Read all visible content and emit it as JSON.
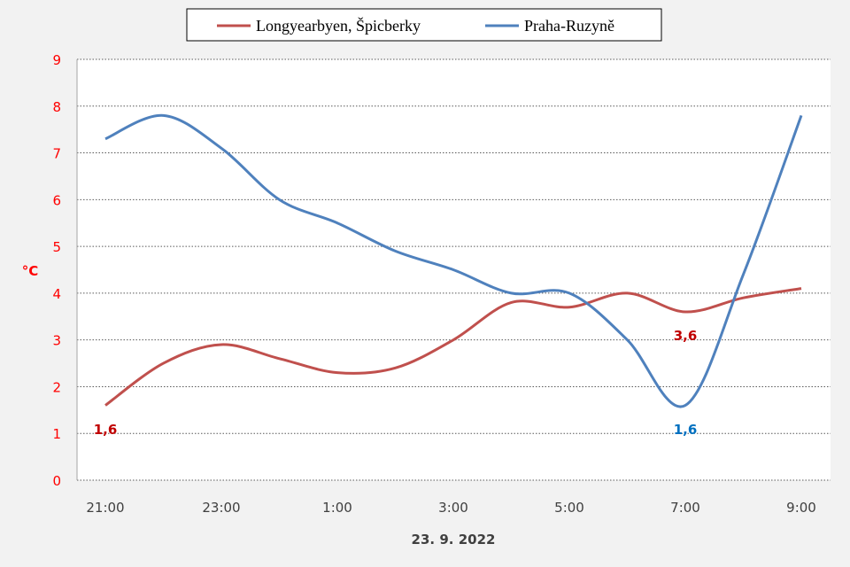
{
  "chart_data": {
    "type": "line",
    "smooth": true,
    "xlabel": "23. 9. 2022",
    "ylabel": "°C",
    "ylim": [
      0,
      9
    ],
    "yticks": [
      "0",
      "1",
      "2",
      "3",
      "4",
      "5",
      "6",
      "7",
      "8",
      "9"
    ],
    "x": [
      "21:00",
      "22:00",
      "23:00",
      "0:00",
      "1:00",
      "2:00",
      "3:00",
      "4:00",
      "5:00",
      "6:00",
      "7:00",
      "8:00",
      "9:00"
    ],
    "xtick_labels": [
      "21:00",
      "23:00",
      "1:00",
      "3:00",
      "5:00",
      "7:00",
      "9:00"
    ],
    "grid": "horizontal dotted",
    "legend_position": "top",
    "series": [
      {
        "name": "Longyearbyen, Špicberky",
        "color": "#c0504d",
        "values": [
          1.6,
          2.5,
          2.9,
          2.6,
          2.3,
          2.4,
          3.0,
          3.8,
          3.7,
          4.0,
          3.6,
          3.9,
          4.1
        ]
      },
      {
        "name": "Praha-Ruzyně",
        "color": "#4f81bd",
        "values": [
          7.3,
          7.8,
          7.1,
          6.0,
          5.5,
          4.9,
          4.5,
          4.0,
          4.0,
          3.0,
          1.6,
          4.4,
          7.8
        ]
      }
    ],
    "annotations": [
      {
        "series": 0,
        "x": "21:00",
        "text": "1,6",
        "color": "#c00000"
      },
      {
        "series": 0,
        "x": "7:00",
        "text": "3,6",
        "color": "#c00000"
      },
      {
        "series": 1,
        "x": "7:00",
        "text": "1,6",
        "color": "#0070c0"
      }
    ],
    "axis_color": "#ff0000"
  }
}
